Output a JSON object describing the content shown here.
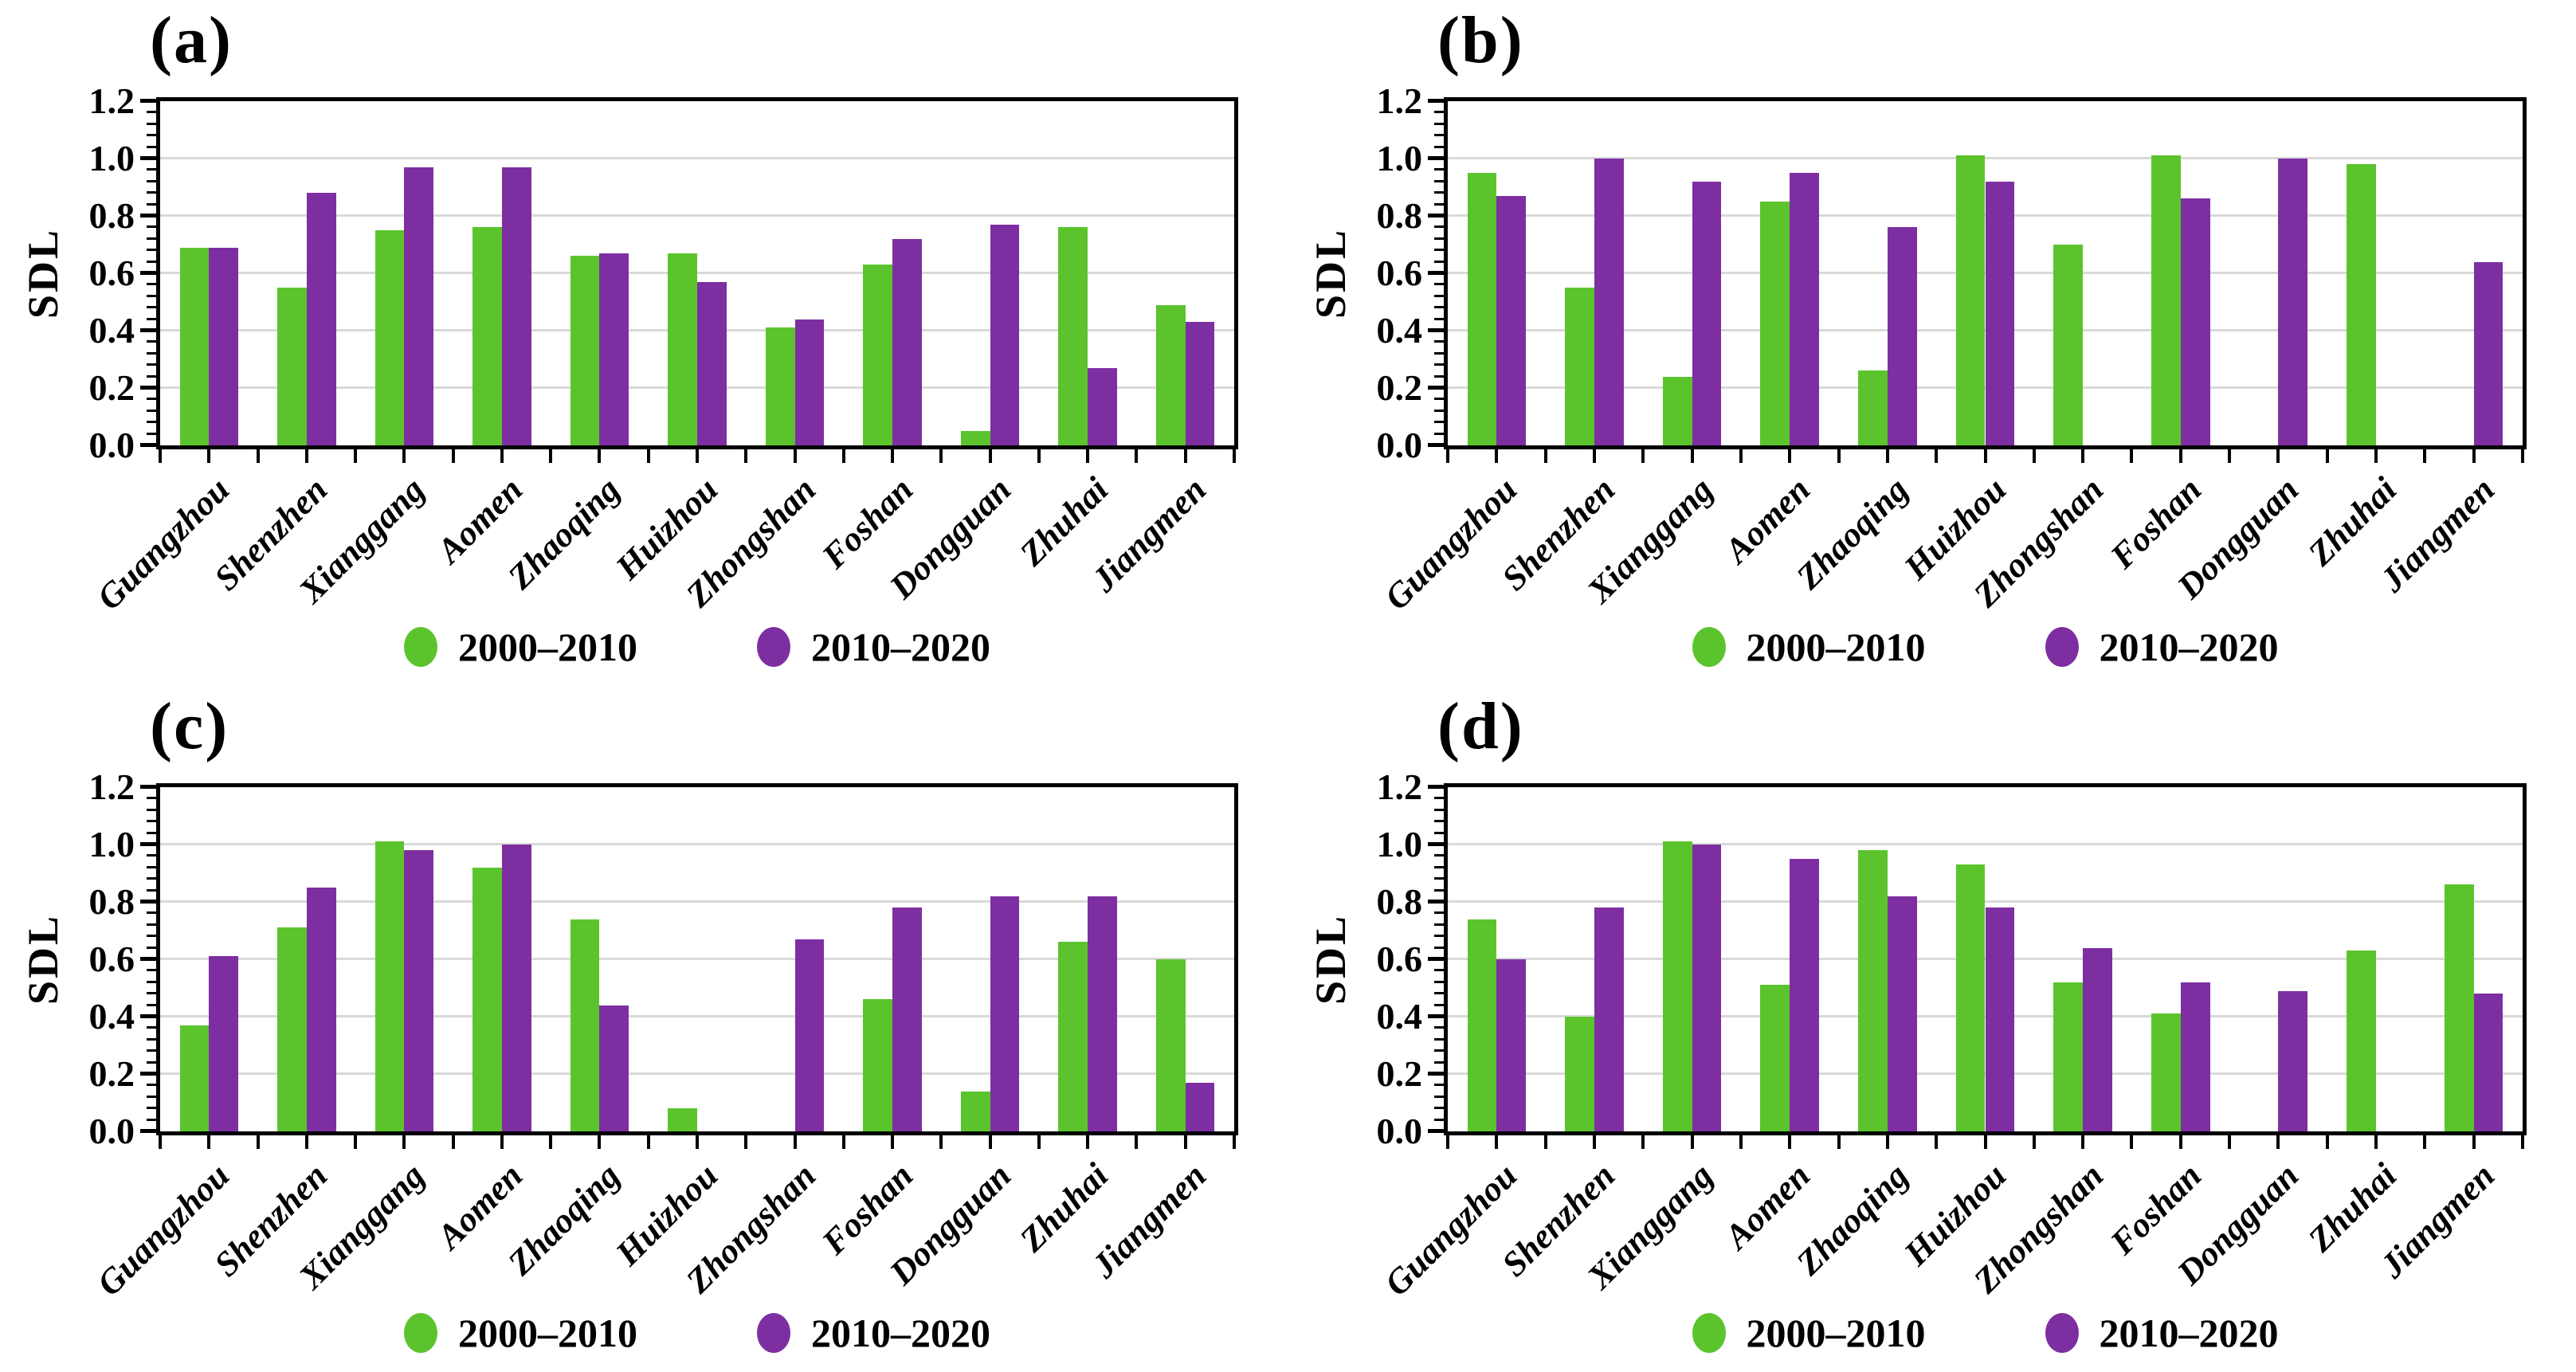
{
  "colors": {
    "series_green": "#5BC42D",
    "series_purple": "#7D2FA2",
    "gridline": "#D9D9D9",
    "axis": "#000000",
    "background": "#ffffff"
  },
  "chart_data": [
    {
      "type": "bar",
      "title": "(a)",
      "ylabel": "SDL",
      "ylim": [
        0,
        1.2
      ],
      "ytick_interval": 0.2,
      "ytick_labels": [
        "0.0",
        "0.2",
        "0.4",
        "0.6",
        "0.8",
        "1.0",
        "1.2"
      ],
      "minor_tick_interval": 0.04,
      "grid": true,
      "legend_position": "bottom",
      "categories": [
        "Guangzhou",
        "Shenzhen",
        "Xianggang",
        "Aomen",
        "Zhaoqing",
        "Huizhou",
        "Zhongshan",
        "Foshan",
        "Dongguan",
        "Zhuhai",
        "Jiangmen"
      ],
      "series": [
        {
          "name": "2000–2010",
          "color": "#5BC42D",
          "values": [
            0.69,
            0.55,
            0.75,
            0.76,
            0.66,
            0.67,
            0.41,
            0.63,
            0.05,
            0.76,
            0.49
          ]
        },
        {
          "name": "2010–2020",
          "color": "#7D2FA2",
          "values": [
            0.69,
            0.88,
            0.97,
            0.97,
            0.67,
            0.57,
            0.44,
            0.72,
            0.77,
            0.27,
            0.43
          ]
        }
      ]
    },
    {
      "type": "bar",
      "title": "(b)",
      "ylabel": "SDL",
      "ylim": [
        0,
        1.2
      ],
      "ytick_interval": 0.2,
      "ytick_labels": [
        "0.0",
        "0.2",
        "0.4",
        "0.6",
        "0.8",
        "1.0",
        "1.2"
      ],
      "minor_tick_interval": 0.04,
      "grid": true,
      "legend_position": "bottom",
      "categories": [
        "Guangzhou",
        "Shenzhen",
        "Xianggang",
        "Aomen",
        "Zhaoqing",
        "Huizhou",
        "Zhongshan",
        "Foshan",
        "Dongguan",
        "Zhuhai",
        "Jiangmen"
      ],
      "series": [
        {
          "name": "2000–2010",
          "color": "#5BC42D",
          "values": [
            0.95,
            0.55,
            0.24,
            0.85,
            0.26,
            1.01,
            0.7,
            1.01,
            0,
            0.98,
            0
          ]
        },
        {
          "name": "2010–2020",
          "color": "#7D2FA2",
          "values": [
            0.87,
            1.0,
            0.92,
            0.95,
            0.76,
            0.92,
            0,
            0.86,
            1.0,
            0,
            0.64
          ]
        }
      ]
    },
    {
      "type": "bar",
      "title": "(c)",
      "ylabel": "SDL",
      "ylim": [
        0,
        1.2
      ],
      "ytick_interval": 0.2,
      "ytick_labels": [
        "0.0",
        "0.2",
        "0.4",
        "0.6",
        "0.8",
        "1.0",
        "1.2"
      ],
      "minor_tick_interval": 0.04,
      "grid": true,
      "legend_position": "bottom",
      "categories": [
        "Guangzhou",
        "Shenzhen",
        "Xianggang",
        "Aomen",
        "Zhaoqing",
        "Huizhou",
        "Zhongshan",
        "Foshan",
        "Dongguan",
        "Zhuhai",
        "Jiangmen"
      ],
      "series": [
        {
          "name": "2000–2010",
          "color": "#5BC42D",
          "values": [
            0.37,
            0.71,
            1.01,
            0.92,
            0.74,
            0.08,
            0,
            0.46,
            0.14,
            0.66,
            0.6
          ]
        },
        {
          "name": "2010–2020",
          "color": "#7D2FA2",
          "values": [
            0.61,
            0.85,
            0.98,
            1.0,
            0.44,
            0,
            0.67,
            0.78,
            0.82,
            0.82,
            0.17
          ]
        }
      ]
    },
    {
      "type": "bar",
      "title": "(d)",
      "ylabel": "SDL",
      "ylim": [
        0,
        1.2
      ],
      "ytick_interval": 0.2,
      "ytick_labels": [
        "0.0",
        "0.2",
        "0.4",
        "0.6",
        "0.8",
        "1.0",
        "1.2"
      ],
      "minor_tick_interval": 0.04,
      "grid": true,
      "legend_position": "bottom",
      "categories": [
        "Guangzhou",
        "Shenzhen",
        "Xianggang",
        "Aomen",
        "Zhaoqing",
        "Huizhou",
        "Zhongshan",
        "Foshan",
        "Dongguan",
        "Zhuhai",
        "Jiangmen"
      ],
      "series": [
        {
          "name": "2000–2010",
          "color": "#5BC42D",
          "values": [
            0.74,
            0.4,
            1.01,
            0.51,
            0.98,
            0.93,
            0.52,
            0.41,
            0,
            0.63,
            0.86
          ]
        },
        {
          "name": "2010–2020",
          "color": "#7D2FA2",
          "values": [
            0.6,
            0.78,
            1.0,
            0.95,
            0.82,
            0.78,
            0.64,
            0.52,
            0.49,
            0,
            0.48
          ]
        }
      ]
    }
  ]
}
